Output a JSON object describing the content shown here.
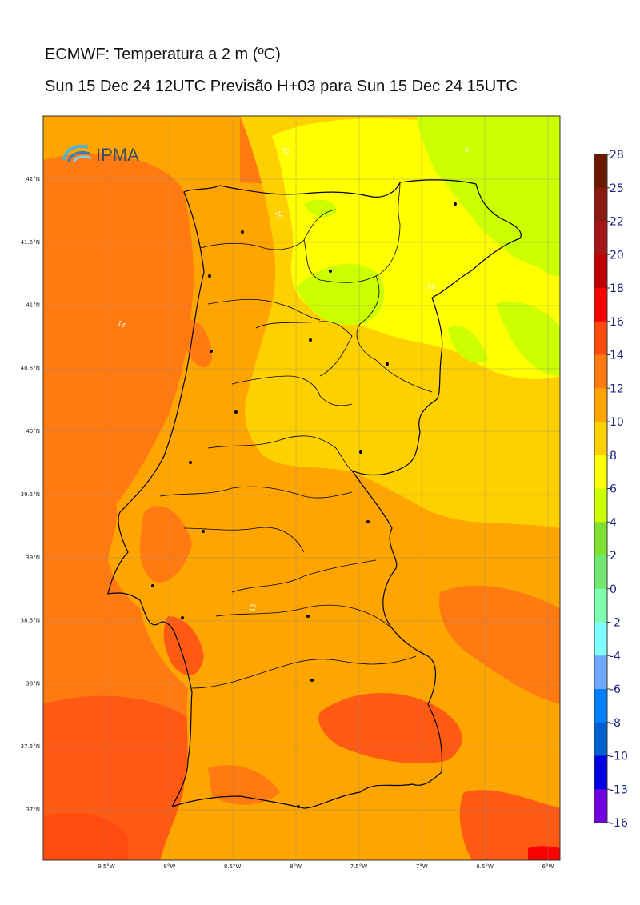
{
  "header": {
    "title": "ECMWF: Temperatura a 2 m (ºC)",
    "subtitle": "Sun 15 Dec 24 12UTC Previsão H+03 para Sun 15 Dec 24 15UTC"
  },
  "logo": {
    "text": "IPMA"
  },
  "axes": {
    "lat_labels": [
      "42°N",
      "41.5°N",
      "41°N",
      "40.5°N",
      "40°N",
      "39.5°N",
      "39°N",
      "38.5°N",
      "38°N",
      "37.5°N",
      "37°N"
    ],
    "lon_labels": [
      "9.5°W",
      "9°W",
      "8.5°W",
      "8°W",
      "7.5°W",
      "7°W",
      "6.5°W",
      "6°W"
    ]
  },
  "contour_labels": [
    "10",
    "6",
    "10",
    "10",
    "14",
    "12"
  ],
  "colorbar": {
    "levels": [
      "28",
      "25",
      "22",
      "20",
      "18",
      "16",
      "14",
      "12",
      "10",
      "8",
      "6",
      "4",
      "2",
      "0",
      "-2",
      "-4",
      "-6",
      "-8",
      "-10",
      "-13",
      "-16"
    ],
    "colors": [
      "#6b1a00",
      "#8b1a10",
      "#a51515",
      "#c00000",
      "#ff0000",
      "#ff4a10",
      "#ff7a10",
      "#ffa500",
      "#ffd000",
      "#ffff00",
      "#ccff00",
      "#80e030",
      "#70e870",
      "#80ffb0",
      "#80ffff",
      "#70a8ff",
      "#0080ff",
      "#0060d0",
      "#0000e0",
      "#7000e0",
      "#e000ff"
    ]
  },
  "colors": {
    "ocean_warm": "#ff7a10",
    "ocean_hot": "#ff5a14",
    "land_mild": "#ffa500",
    "land_cool": "#ffd000",
    "land_cold": "#ffff00",
    "land_coldest": "#ccff00"
  }
}
